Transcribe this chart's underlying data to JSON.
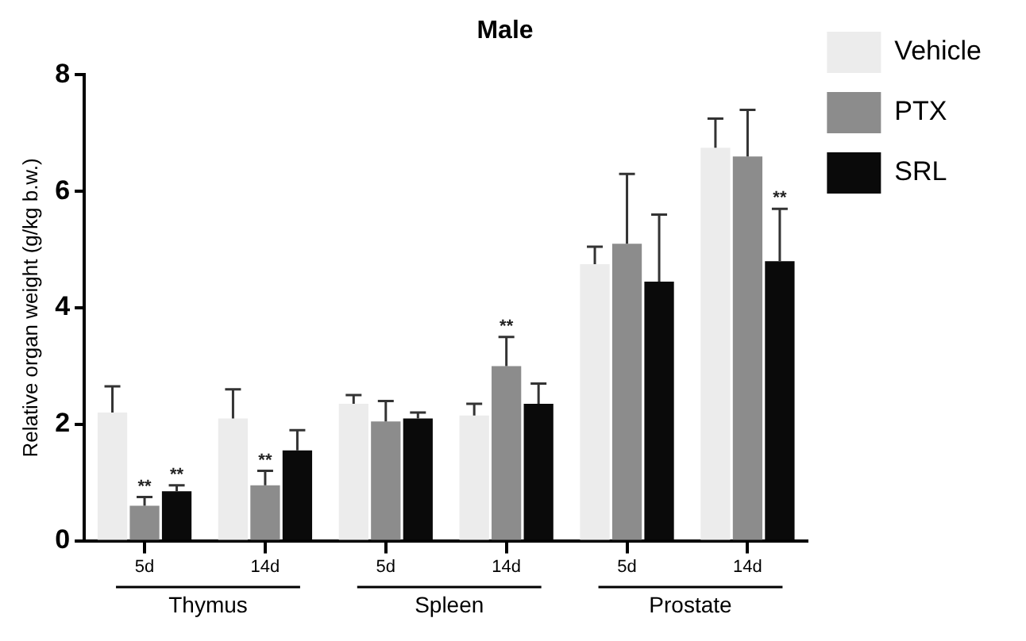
{
  "chart_data": {
    "type": "bar",
    "title": "Male",
    "ylabel": "Relative organ weight (g/kg b.w.)",
    "categories": [
      "5d",
      "14d",
      "5d",
      "14d",
      "5d",
      "14d"
    ],
    "annotations": [
      "Thymus",
      "Spleen",
      "Prostate"
    ],
    "series": [
      {
        "name": "Vehicle",
        "color": "#ececec",
        "values": [
          2.2,
          2.1,
          2.35,
          2.15,
          4.75,
          6.75
        ],
        "errors": [
          [
            2.2,
            2.65
          ],
          [
            2.1,
            2.6
          ],
          [
            2.35,
            2.5
          ],
          [
            2.15,
            2.35
          ],
          [
            4.75,
            5.05
          ],
          [
            6.75,
            7.25
          ]
        ]
      },
      {
        "name": "PTX",
        "color": "#8c8c8c",
        "values": [
          0.6,
          0.95,
          2.05,
          3.0,
          5.1,
          6.6
        ],
        "errors": [
          [
            0.6,
            0.75
          ],
          [
            0.95,
            1.2
          ],
          [
            2.05,
            2.4
          ],
          [
            3.0,
            3.5
          ],
          [
            5.1,
            6.3
          ],
          [
            6.6,
            7.4
          ]
        ],
        "value_labels": [
          "**",
          "**",
          null,
          "**",
          null,
          null
        ]
      },
      {
        "name": "SRL",
        "color": "#0a0a0a",
        "values": [
          0.85,
          1.55,
          2.1,
          2.35,
          4.45,
          4.8
        ],
        "errors": [
          [
            0.85,
            0.95
          ],
          [
            1.55,
            1.9
          ],
          [
            2.1,
            2.2
          ],
          [
            2.35,
            2.7
          ],
          [
            4.45,
            5.6
          ],
          [
            4.8,
            5.7
          ]
        ],
        "value_labels": [
          "**",
          null,
          null,
          null,
          null,
          "**"
        ]
      }
    ],
    "ylim": [
      0,
      8
    ],
    "yticks": [
      0,
      2,
      4,
      6,
      8
    ],
    "grid": false,
    "legend": "top right"
  }
}
